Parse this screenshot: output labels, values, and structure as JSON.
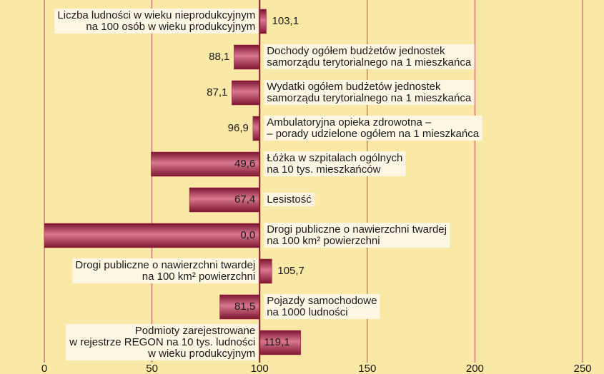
{
  "chart_data": {
    "type": "bar",
    "orientation": "horizontal",
    "baseline": 100,
    "categories": [
      [
        "Liczba ludności w wieku nieprodukcyjnym",
        "na 100 osób w wieku produkcyjnym"
      ],
      [
        "Dochody ogółem budżetów jednostek",
        "samorządu terytorialnego na 1 mieszkańca"
      ],
      [
        "Wydatki ogółem budżetów jednostek",
        "samorządu terytorialnego na 1 mieszkańca"
      ],
      [
        "Ambulatoryjna opieka zdrowotna –",
        "– porady udzielone ogółem na 1 mieszkańca"
      ],
      [
        "Łóżka w szpitalach ogólnych",
        "na 10 tys. mieszkańców"
      ],
      [
        "Lesistość"
      ],
      [
        "Drogi publiczne o nawierzchni twardej",
        "na 100 km² powierzchni"
      ],
      [
        "Drogi publiczne o nawierzchni twardej",
        "na 100 km² powierzchni"
      ],
      [
        "Pojazdy samochodowe",
        "na 1000 ludności"
      ],
      [
        "Podmioty zarejestrowane",
        "w rejestrze REGON na 10 tys. ludności",
        "w wieku produkcyjnym"
      ]
    ],
    "values": [
      103.1,
      88.1,
      87.1,
      96.9,
      49.6,
      67.4,
      0.0,
      105.7,
      81.5,
      119.1
    ],
    "value_labels": [
      "103,1",
      "88,1",
      "87,1",
      "96,9",
      "49,6",
      "67,4",
      "0,0",
      "105,7",
      "81,5",
      "119,1"
    ],
    "color": "#a3203d",
    "xlim": [
      0,
      250
    ],
    "xticks": [
      0,
      50,
      100,
      150,
      200,
      250
    ],
    "grid": true
  }
}
